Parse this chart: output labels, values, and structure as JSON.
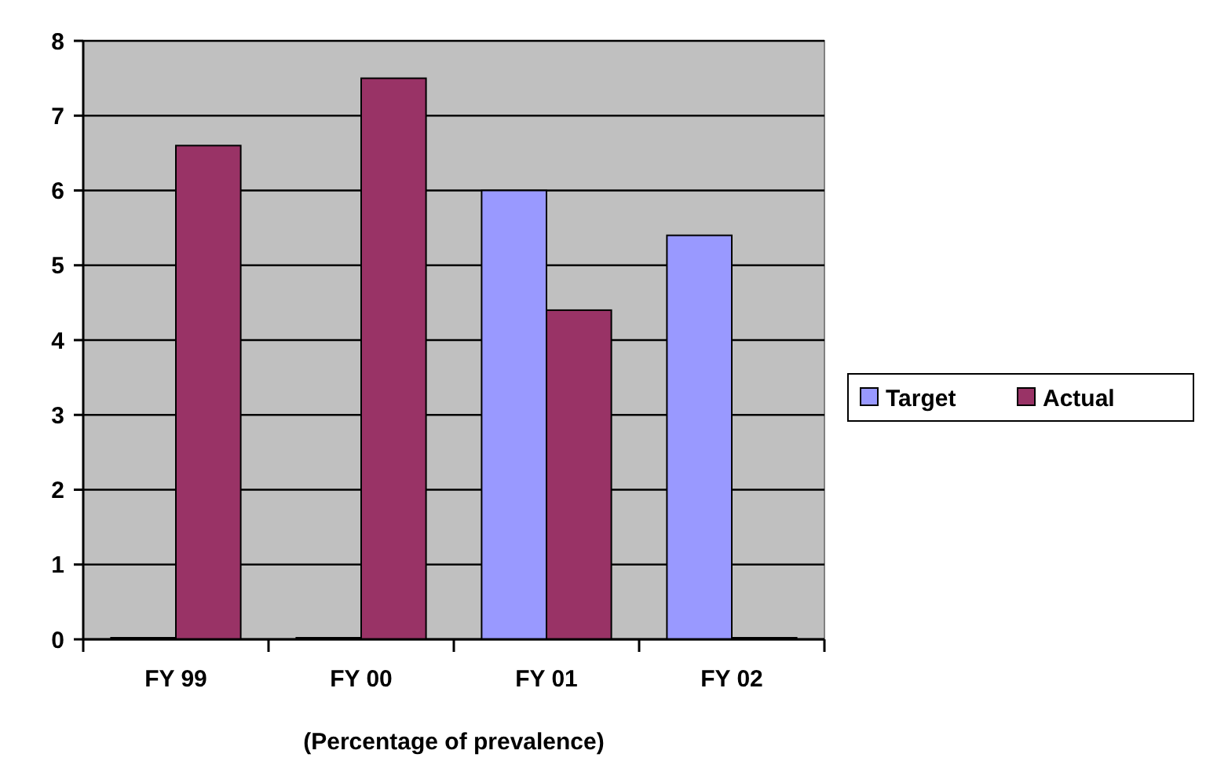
{
  "chart_data": {
    "type": "bar",
    "xlabel": "(Percentage of prevalence)",
    "categories": [
      "FY 99",
      "FY 00",
      "FY 01",
      "FY 02"
    ],
    "series": [
      {
        "name": "Target",
        "color": "#9999ff",
        "values": [
          0,
          0,
          6,
          5.4
        ]
      },
      {
        "name": "Actual",
        "color": "#993366",
        "values": [
          6.6,
          7.5,
          4.4,
          0
        ]
      }
    ],
    "ylim": [
      0,
      8
    ],
    "yticks": [
      0,
      1,
      2,
      3,
      4,
      5,
      6,
      7,
      8
    ],
    "grid": "y",
    "legend": "right"
  }
}
